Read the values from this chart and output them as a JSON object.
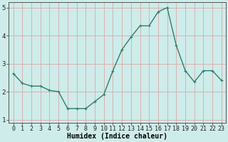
{
  "x": [
    0,
    1,
    2,
    3,
    4,
    5,
    6,
    7,
    8,
    9,
    10,
    11,
    12,
    13,
    14,
    15,
    16,
    17,
    18,
    19,
    20,
    21,
    22,
    23
  ],
  "y": [
    2.65,
    2.3,
    2.2,
    2.2,
    2.05,
    2.0,
    1.4,
    1.4,
    1.4,
    1.65,
    1.9,
    2.75,
    3.5,
    3.95,
    4.35,
    4.35,
    4.85,
    5.0,
    3.65,
    2.75,
    2.35,
    2.75,
    2.75,
    2.4
  ],
  "line_color": "#2e7d6e",
  "marker": "+",
  "markersize": 3,
  "linewidth": 1.0,
  "xlabel": "Humidex (Indice chaleur)",
  "xlim": [
    -0.5,
    23.5
  ],
  "ylim": [
    0.9,
    5.2
  ],
  "yticks": [
    1,
    2,
    3,
    4,
    5
  ],
  "xticks": [
    0,
    1,
    2,
    3,
    4,
    5,
    6,
    7,
    8,
    9,
    10,
    11,
    12,
    13,
    14,
    15,
    16,
    17,
    18,
    19,
    20,
    21,
    22,
    23
  ],
  "bg_color": "#ceecea",
  "grid_color": "#d9a8a8",
  "tick_fontsize": 6.0,
  "xlabel_fontsize": 7.0
}
